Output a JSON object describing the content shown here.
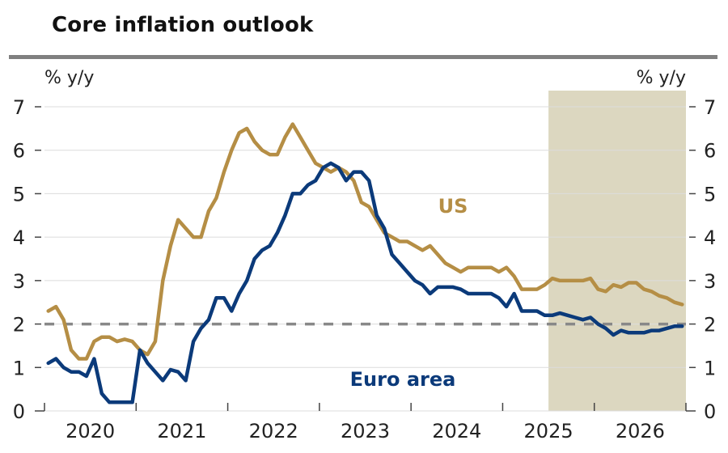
{
  "chart_data": {
    "type": "line",
    "title": "Core inflation outlook",
    "ylabel_left": "% y/y",
    "ylabel_right": "% y/y",
    "ylim": [
      0,
      7
    ],
    "yticks": [
      0,
      1,
      2,
      3,
      4,
      5,
      6,
      7
    ],
    "x_start": "2020-01",
    "x_end": "2026-12",
    "xtick_labels": [
      "2020",
      "2021",
      "2022",
      "2023",
      "2024",
      "2025",
      "2026"
    ],
    "target_line": {
      "value": 2,
      "style": "dashed",
      "color": "#888888"
    },
    "forecast_shading": {
      "start": "2025-07",
      "end": "2026-12",
      "color": "#dcd7c0"
    },
    "grid": true,
    "series": [
      {
        "name": "US",
        "color": "#b58e45",
        "label_position": "upper-middle",
        "start": "2020-01",
        "values": [
          2.3,
          2.4,
          2.1,
          1.4,
          1.2,
          1.2,
          1.6,
          1.7,
          1.7,
          1.6,
          1.65,
          1.6,
          1.4,
          1.3,
          1.6,
          3.0,
          3.8,
          4.4,
          4.2,
          4.0,
          4.0,
          4.6,
          4.9,
          5.5,
          6.0,
          6.4,
          6.5,
          6.2,
          6.0,
          5.9,
          5.9,
          6.3,
          6.6,
          6.3,
          6.0,
          5.7,
          5.6,
          5.5,
          5.6,
          5.5,
          5.3,
          4.8,
          4.7,
          4.4,
          4.1,
          4.0,
          3.9,
          3.9,
          3.8,
          3.7,
          3.8,
          3.6,
          3.4,
          3.3,
          3.2,
          3.3,
          3.3,
          3.3,
          3.3,
          3.2,
          3.3,
          3.1,
          2.8,
          2.8,
          2.8,
          2.9,
          3.05,
          3.0,
          3.0,
          3.0,
          3.0,
          3.05,
          2.8,
          2.75,
          2.9,
          2.85,
          2.95,
          2.95,
          2.8,
          2.75,
          2.65,
          2.6,
          2.5,
          2.45
        ]
      },
      {
        "name": "Euro area",
        "color": "#0b3a7a",
        "label_position": "lower-middle",
        "start": "2020-01",
        "values": [
          1.1,
          1.2,
          1.0,
          0.9,
          0.9,
          0.8,
          1.2,
          0.4,
          0.2,
          0.2,
          0.2,
          0.2,
          1.4,
          1.1,
          0.9,
          0.7,
          0.95,
          0.9,
          0.7,
          1.6,
          1.9,
          2.1,
          2.6,
          2.6,
          2.3,
          2.7,
          3.0,
          3.5,
          3.7,
          3.8,
          4.1,
          4.5,
          5.0,
          5.0,
          5.2,
          5.3,
          5.6,
          5.7,
          5.6,
          5.3,
          5.5,
          5.5,
          5.3,
          4.5,
          4.2,
          3.6,
          3.4,
          3.2,
          3.0,
          2.9,
          2.7,
          2.85,
          2.85,
          2.85,
          2.8,
          2.7,
          2.7,
          2.7,
          2.7,
          2.6,
          2.4,
          2.7,
          2.3,
          2.3,
          2.3,
          2.2,
          2.2,
          2.25,
          2.2,
          2.15,
          2.1,
          2.15,
          2.0,
          1.9,
          1.75,
          1.85,
          1.8,
          1.8,
          1.8,
          1.85,
          1.85,
          1.9,
          1.95,
          1.95
        ]
      }
    ]
  }
}
